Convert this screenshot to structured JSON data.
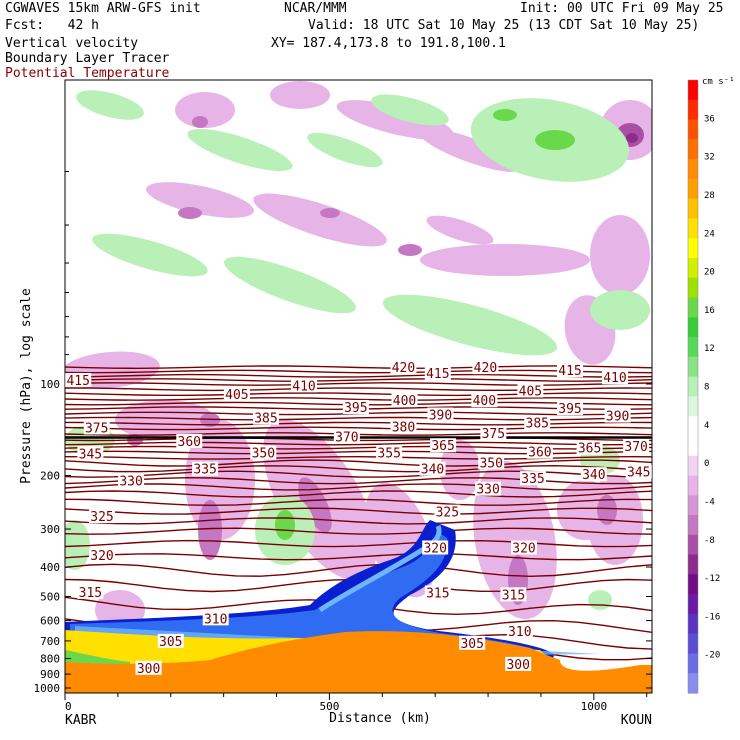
{
  "header": {
    "model": "CGWAVES 15km ARW-GFS init",
    "fcst": "Fcst:   42 h",
    "field1": "Vertical velocity",
    "field2": "Boundary Layer Tracer",
    "field3": "Potential Temperature",
    "org": "NCAR/MMM",
    "init": "Init: 00 UTC Fri 09 May 25",
    "valid": "Valid: 18 UTC Sat 10 May 25 (13 CDT Sat 10 May 25)",
    "xy": "XY= 187.4,173.8 to 191.8,100.1"
  },
  "colors": {
    "theta": "#7a0000",
    "tracer": [
      "#0a1fd0",
      "#2f6cf2",
      "#6fb5f9",
      "#a8dcfb"
    ],
    "surface": "#ff8c00"
  },
  "chart_data": {
    "type": "cross-section",
    "xlabel": "Distance (km)",
    "ylabel": "Pressure (hPa), log scale",
    "x_ticks": [
      "0",
      "500",
      "1000"
    ],
    "x_tick_values": [
      0,
      500,
      1000
    ],
    "xlim": [
      0,
      1110
    ],
    "y_ticks": [
      "100",
      "200",
      "300",
      "400",
      "500",
      "600",
      "700",
      "800",
      "900",
      "1000"
    ],
    "y_tick_values": [
      100,
      200,
      300,
      400,
      500,
      600,
      700,
      800,
      900,
      1000
    ],
    "left_station": "KABR",
    "right_station": "KOUN",
    "colorbar": {
      "units": "cm s⁻¹",
      "labels": [
        "36",
        "32",
        "28",
        "24",
        "20",
        "16",
        "12",
        "8",
        "4",
        "0",
        "-4",
        "-8",
        "-12",
        "-16",
        "-20"
      ],
      "levels": [
        36,
        32,
        28,
        24,
        20,
        16,
        12,
        8,
        4,
        0,
        -4,
        -8,
        -12,
        -16,
        -20
      ],
      "colors": [
        "#ff0000",
        "#ff2a00",
        "#ff5200",
        "#ff7000",
        "#ff8c00",
        "#ffa000",
        "#ffc000",
        "#ffe000",
        "#ffff00",
        "#d0f000",
        "#9ee000",
        "#6ad84a",
        "#38cc38",
        "#58d858",
        "#88e288",
        "#b8f0b8",
        "#dcf8dc",
        "#ffffff",
        "#ffffff",
        "#f2d4f2",
        "#e6b4e6",
        "#d696d6",
        "#c478c4",
        "#a850a8",
        "#8c2c8c",
        "#700c86",
        "#6a1aa6",
        "#5a34c0",
        "#5a4ed6",
        "#6a6ee4",
        "#8a8cf0"
      ]
    },
    "theta_labels": [
      {
        "value": "415",
        "x": 25,
        "p": 97
      },
      {
        "value": "405",
        "x": 325,
        "p": 108
      },
      {
        "value": "410",
        "x": 452,
        "p": 101
      },
      {
        "value": "420",
        "x": 640,
        "p": 88
      },
      {
        "value": "415",
        "x": 705,
        "p": 92
      },
      {
        "value": "420",
        "x": 795,
        "p": 88
      },
      {
        "value": "415",
        "x": 955,
        "p": 90
      },
      {
        "value": "410",
        "x": 1040,
        "p": 95
      },
      {
        "value": "395",
        "x": 550,
        "p": 119
      },
      {
        "value": "400",
        "x": 642,
        "p": 113
      },
      {
        "value": "400",
        "x": 793,
        "p": 113
      },
      {
        "value": "405",
        "x": 880,
        "p": 105
      },
      {
        "value": "395",
        "x": 955,
        "p": 120
      },
      {
        "value": "390",
        "x": 1045,
        "p": 127
      },
      {
        "value": "385",
        "x": 380,
        "p": 129
      },
      {
        "value": "390",
        "x": 710,
        "p": 126
      },
      {
        "value": "385",
        "x": 893,
        "p": 134
      },
      {
        "value": "380",
        "x": 640,
        "p": 138
      },
      {
        "value": "375",
        "x": 60,
        "p": 139
      },
      {
        "value": "375",
        "x": 810,
        "p": 145
      },
      {
        "value": "370",
        "x": 533,
        "p": 149
      },
      {
        "value": "360",
        "x": 235,
        "p": 154
      },
      {
        "value": "365",
        "x": 715,
        "p": 159
      },
      {
        "value": "360",
        "x": 898,
        "p": 167
      },
      {
        "value": "365",
        "x": 992,
        "p": 162
      },
      {
        "value": "370",
        "x": 1080,
        "p": 160
      },
      {
        "value": "345",
        "x": 48,
        "p": 169
      },
      {
        "value": "350",
        "x": 375,
        "p": 168
      },
      {
        "value": "355",
        "x": 613,
        "p": 168
      },
      {
        "value": "350",
        "x": 806,
        "p": 181
      },
      {
        "value": "335",
        "x": 265,
        "p": 190
      },
      {
        "value": "340",
        "x": 695,
        "p": 190
      },
      {
        "value": "335",
        "x": 885,
        "p": 204
      },
      {
        "value": "340",
        "x": 1000,
        "p": 198
      },
      {
        "value": "345",
        "x": 1085,
        "p": 194
      },
      {
        "value": "330",
        "x": 125,
        "p": 208
      },
      {
        "value": "330",
        "x": 800,
        "p": 221
      },
      {
        "value": "325",
        "x": 70,
        "p": 272
      },
      {
        "value": "325",
        "x": 723,
        "p": 263
      },
      {
        "value": "320",
        "x": 70,
        "p": 365
      },
      {
        "value": "320",
        "x": 700,
        "p": 345
      },
      {
        "value": "320",
        "x": 868,
        "p": 345
      },
      {
        "value": "315",
        "x": 48,
        "p": 483
      },
      {
        "value": "315",
        "x": 705,
        "p": 485
      },
      {
        "value": "315",
        "x": 848,
        "p": 492
      },
      {
        "value": "310",
        "x": 285,
        "p": 590
      },
      {
        "value": "310",
        "x": 860,
        "p": 650
      },
      {
        "value": "305",
        "x": 200,
        "p": 700
      },
      {
        "value": "305",
        "x": 770,
        "p": 710
      },
      {
        "value": "300",
        "x": 158,
        "p": 858
      },
      {
        "value": "300",
        "x": 857,
        "p": 833
      }
    ]
  }
}
